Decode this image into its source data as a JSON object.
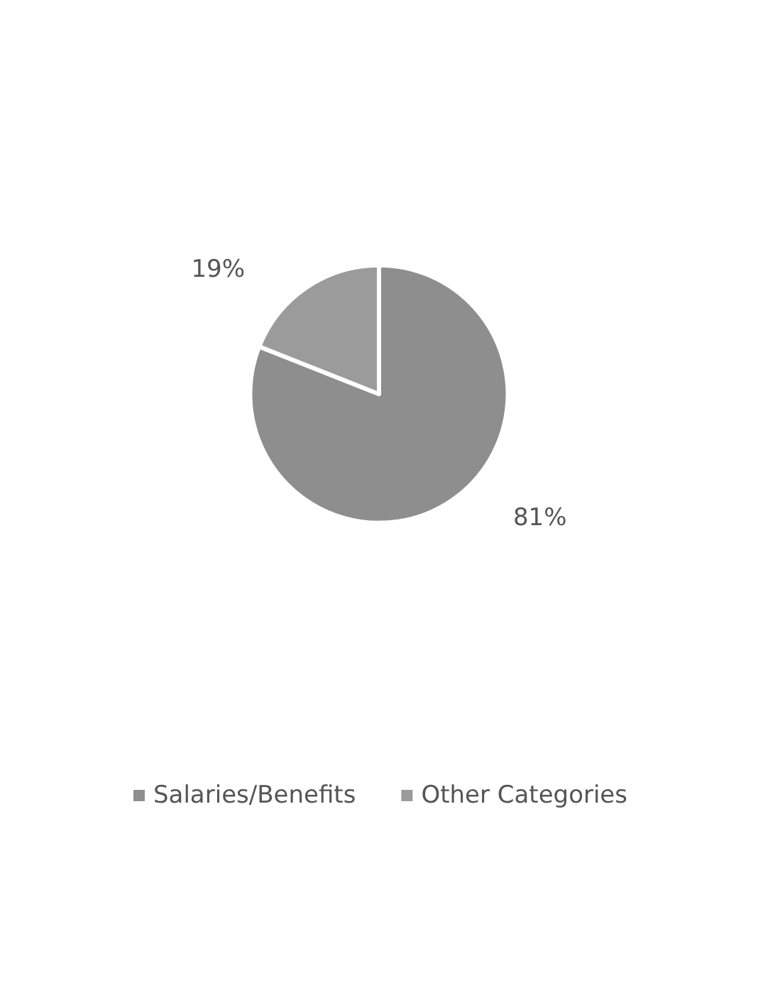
{
  "chart_data": {
    "type": "pie",
    "categories": [
      "Salaries/Benefits",
      "Other Categories"
    ],
    "values": [
      81,
      19
    ],
    "value_labels": [
      "81%",
      "19%"
    ],
    "colors": [
      "#8e8e8e",
      "#9b9b9b"
    ],
    "legend": "bottom"
  }
}
